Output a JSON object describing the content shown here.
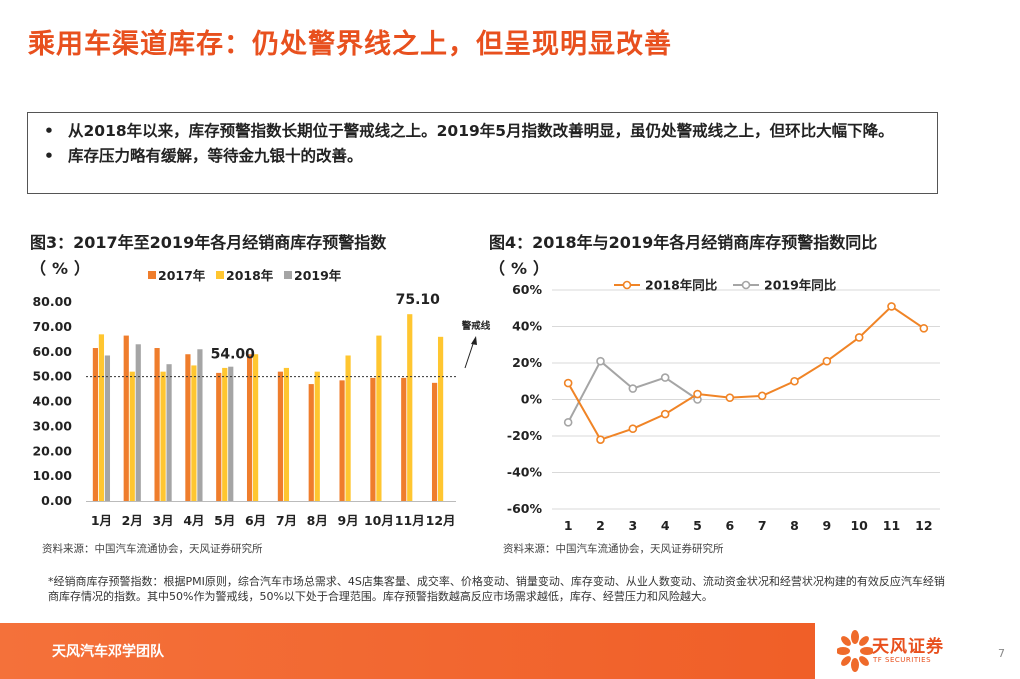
{
  "title": "乘用车渠道库存：仍处警界线之上，但呈现明显改善",
  "bullets": [
    "从2018年以来，库存预警指数长期位于警戒线之上。2019年5月指数改善明显，虽仍处警戒线之上，但环比大幅下降。",
    "库存压力略有缓解，等待金九银十的改善。"
  ],
  "figure3": {
    "title_line1": "图3：2017年至2019年各月经销商库存预警指数",
    "title_line2": "（%）",
    "source": "资料来源：中国汽车流通协会，天风证券研究所"
  },
  "figure4": {
    "title_line1": "图4：2018年与2019年各月经销商库存预警指数同比",
    "title_line2": "（%）",
    "source": "资料来源：中国汽车流通协会，天风证券研究所"
  },
  "chart_data": [
    {
      "type": "bar",
      "categories": [
        "1月",
        "2月",
        "3月",
        "4月",
        "5月",
        "6月",
        "7月",
        "8月",
        "9月",
        "10月",
        "11月",
        "12月"
      ],
      "series": [
        {
          "name": "2017年",
          "color": "#ef7d2c",
          "values": [
            61.5,
            66.5,
            61.5,
            59,
            51.5,
            59,
            52,
            47,
            48.5,
            49.5,
            49.5,
            47.5
          ]
        },
        {
          "name": "2018年",
          "color": "#ffc630",
          "values": [
            67,
            52,
            52,
            54.5,
            53.5,
            59,
            53.5,
            52,
            58.5,
            66.5,
            75.1,
            66
          ]
        },
        {
          "name": "2019年",
          "color": "#a5a5a5",
          "values": [
            58.5,
            63,
            55,
            61,
            54,
            null,
            null,
            null,
            null,
            null,
            null,
            null
          ]
        }
      ],
      "ylim": [
        0,
        80
      ],
      "yticks": [
        "0.00",
        "10.00",
        "20.00",
        "30.00",
        "40.00",
        "50.00",
        "60.00",
        "70.00",
        "80.00"
      ],
      "reference_line": {
        "value": 50,
        "label": "警戒线"
      },
      "annotations": [
        {
          "text": "54.00",
          "category": "5月",
          "value": 54
        },
        {
          "text": "75.10",
          "category": "11月",
          "value": 75.1
        }
      ],
      "legend": "top"
    },
    {
      "type": "line",
      "x": [
        "1",
        "2",
        "3",
        "4",
        "5",
        "6",
        "7",
        "8",
        "9",
        "10",
        "11",
        "12"
      ],
      "series": [
        {
          "name": "2018年同比",
          "color": "#f08426",
          "values": [
            9,
            -22,
            -16,
            -8,
            3,
            1,
            2,
            10,
            21,
            34,
            51,
            39
          ]
        },
        {
          "name": "2019年同比",
          "color": "#a5a5a5",
          "values": [
            -12.5,
            21,
            6,
            12,
            0,
            null,
            null,
            null,
            null,
            null,
            null,
            null
          ]
        }
      ],
      "ylim": [
        -60,
        60
      ],
      "yticks": [
        "-60%",
        "-40%",
        "-20%",
        "0%",
        "20%",
        "40%",
        "60%"
      ],
      "legend": "top"
    }
  ],
  "footnote": "*经销商库存预警指数：根据PMI原则，综合汽车市场总需求、4S店集客量、成交率、价格变动、销量变动、库存变动、从业人数变动、流动资金状况和经营状况构建的有效反应汽车经销商库存情况的指数。其中50%作为警戒线，50%以下处于合理范围。库存预警指数越高反应市场需求越低，库存、经营压力和风险越大。",
  "footer": {
    "team": "天风汽车邓学团队",
    "logo_name": "天风证券",
    "logo_sub": "TF SECURITIES",
    "page": "7"
  }
}
